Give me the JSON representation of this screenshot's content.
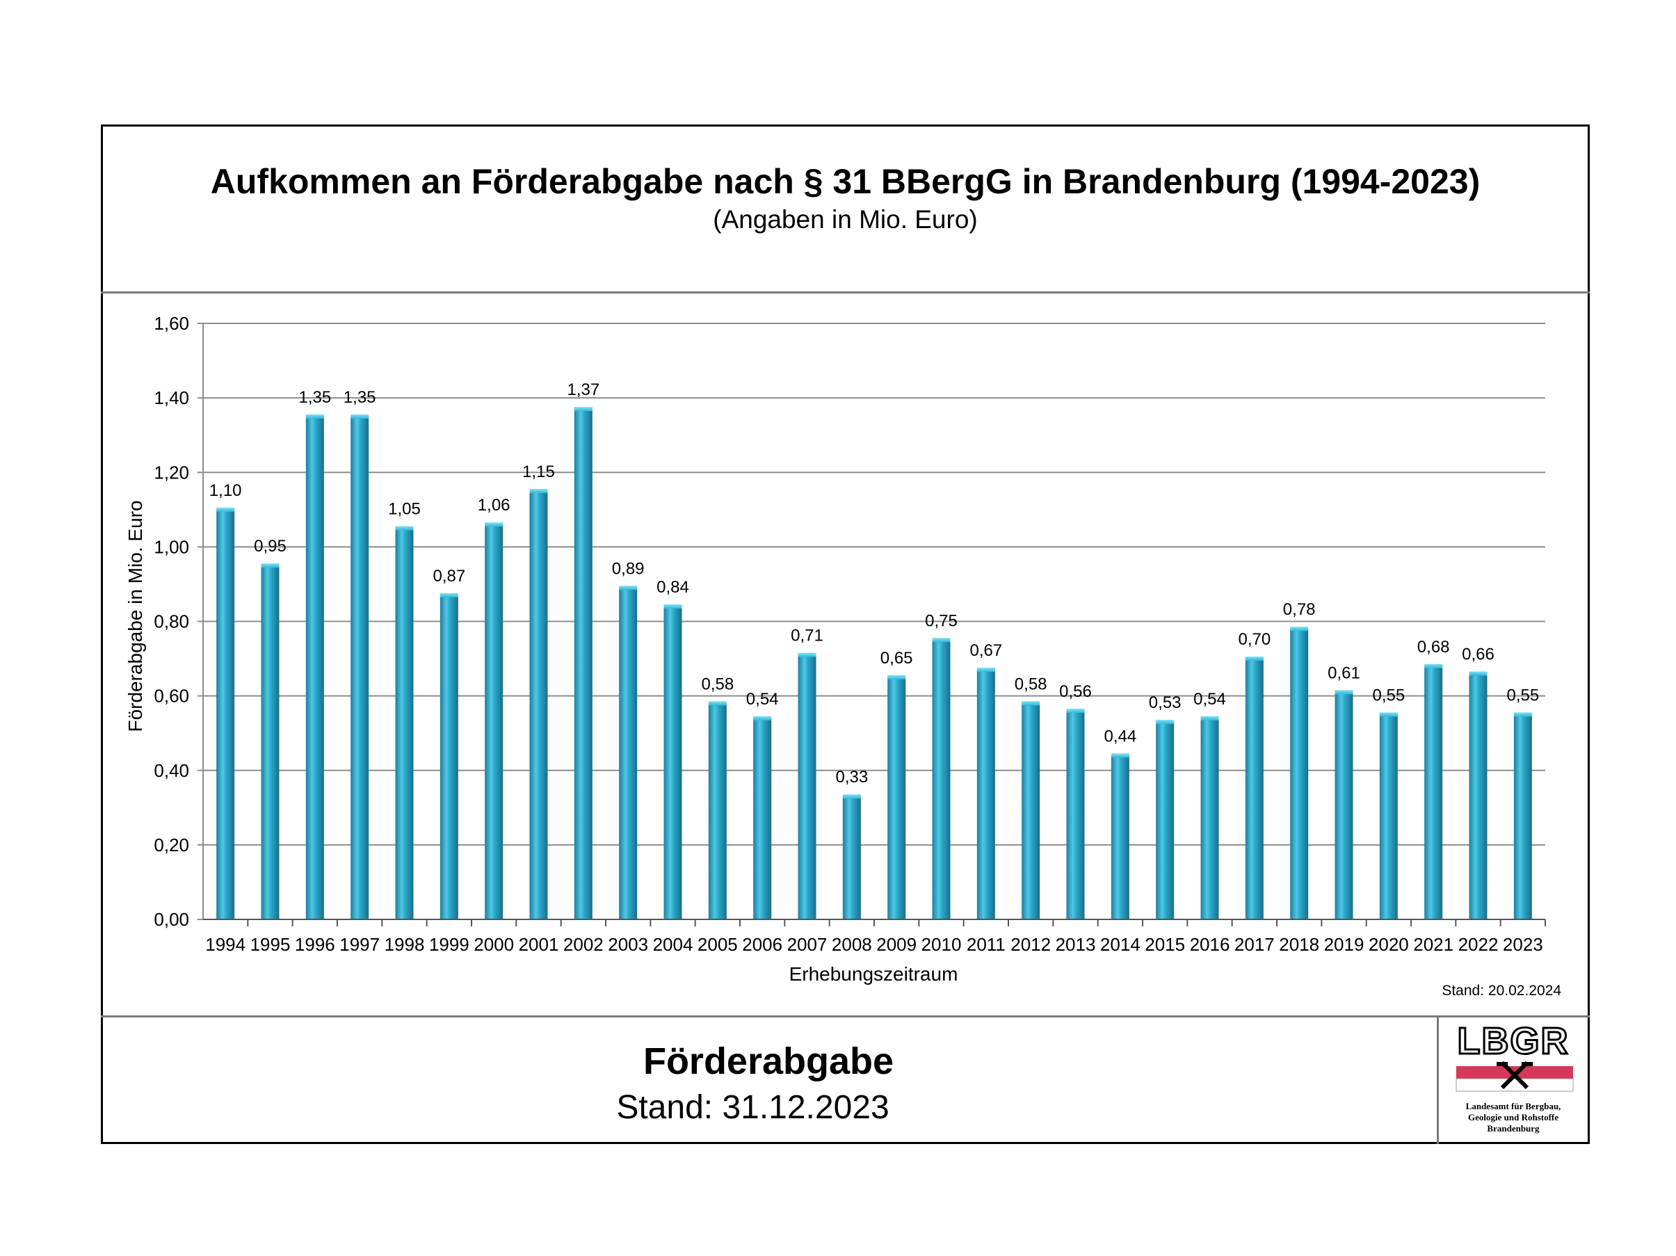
{
  "header": {
    "title": "Aufkommen an Förderabgabe nach § 31 BBergG in Brandenburg (1994-2023)",
    "subtitle": "(Angaben in Mio. Euro)"
  },
  "footer": {
    "title": "Förderabgabe",
    "stand": "Stand: 31.12.2023"
  },
  "chart_stand": "Stand: 20.02.2024",
  "logo": {
    "text": "LBGR",
    "tagline_lines": [
      "Landesamt für Bergbau,",
      "Geologie und Rohstoffe",
      "Brandenburg"
    ],
    "colors": {
      "band": "#d6385a",
      "text": "#000000"
    }
  },
  "chart_data": {
    "type": "bar",
    "xlabel": "Erhebungszeitraum",
    "ylabel": "Förderabgabe in Mio. Euro",
    "ylim": [
      0,
      1.6
    ],
    "yticks": [
      "0,00",
      "0,20",
      "0,40",
      "0,60",
      "0,80",
      "1,00",
      "1,20",
      "1,40",
      "1,60"
    ],
    "grid": true,
    "bar_color": "#2aa7c9",
    "categories": [
      "1994",
      "1995",
      "1996",
      "1997",
      "1998",
      "1999",
      "2000",
      "2001",
      "2002",
      "2003",
      "2004",
      "2005",
      "2006",
      "2007",
      "2008",
      "2009",
      "2010",
      "2011",
      "2012",
      "2013",
      "2014",
      "2015",
      "2016",
      "2017",
      "2018",
      "2019",
      "2020",
      "2021",
      "2022",
      "2023"
    ],
    "values": [
      1.1,
      0.95,
      1.35,
      1.35,
      1.05,
      0.87,
      1.06,
      1.15,
      1.37,
      0.89,
      0.84,
      0.58,
      0.54,
      0.71,
      0.33,
      0.65,
      0.75,
      0.67,
      0.58,
      0.56,
      0.44,
      0.53,
      0.54,
      0.7,
      0.78,
      0.61,
      0.55,
      0.68,
      0.66,
      0.55
    ],
    "labels": [
      "1,10",
      "0,95",
      "1,35",
      "1,35",
      "1,05",
      "0,87",
      "1,06",
      "1,15",
      "1,37",
      "0,89",
      "0,84",
      "0,58",
      "0,54",
      "0,71",
      "0,33",
      "0,65",
      "0,75",
      "0,67",
      "0,58",
      "0,56",
      "0,44",
      "0,53",
      "0,54",
      "0,70",
      "0,78",
      "0,61",
      "0,55",
      "0,68",
      "0,66",
      "0,55"
    ]
  }
}
